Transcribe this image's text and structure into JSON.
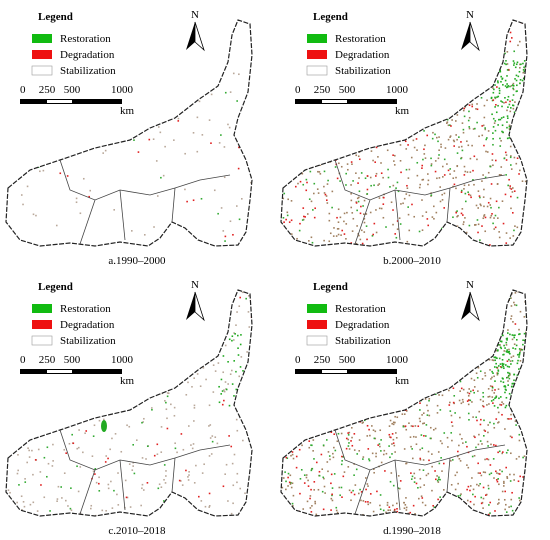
{
  "panels": [
    {
      "legend": {
        "title": "Legend",
        "items": [
          "Restoration",
          "Degradation",
          "Stabilization"
        ]
      },
      "north": "N",
      "scale": {
        "ticks": [
          "0",
          "250",
          "500",
          "1000"
        ],
        "unit": "km"
      },
      "caption": "a.1990–2000"
    },
    {
      "legend": {
        "title": "Legend",
        "items": [
          "Restoration",
          "Degradation",
          "Stabilization"
        ]
      },
      "north": "N",
      "scale": {
        "ticks": [
          "0",
          "250",
          "500",
          "1000"
        ],
        "unit": "km"
      },
      "caption": "b.2000–2010"
    },
    {
      "legend": {
        "title": "Legend",
        "items": [
          "Restoration",
          "Degradation",
          "Stabilization"
        ]
      },
      "north": "N",
      "scale": {
        "ticks": [
          "0",
          "250",
          "500",
          "1000"
        ],
        "unit": "km"
      },
      "caption": "c.2010–2018"
    },
    {
      "legend": {
        "title": "Legend",
        "items": [
          "Restoration",
          "Degradation",
          "Stabilization"
        ]
      },
      "north": "N",
      "scale": {
        "ticks": [
          "0",
          "250",
          "500",
          "1000"
        ],
        "unit": "km"
      },
      "caption": "d.1990–2018"
    }
  ]
}
